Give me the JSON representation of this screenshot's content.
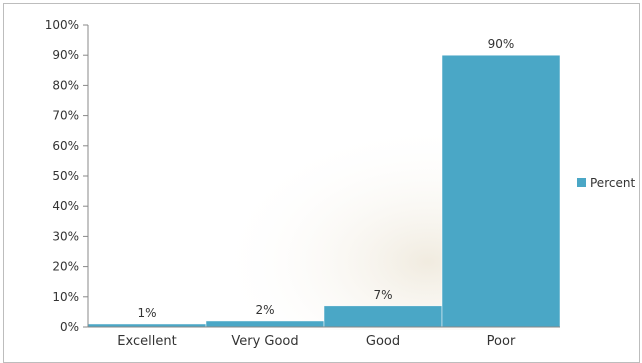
{
  "chart_data": {
    "type": "bar",
    "categories": [
      "Excellent",
      "Very Good",
      "Good",
      "Poor"
    ],
    "values": [
      1,
      2,
      7,
      90
    ],
    "value_labels": [
      "1%",
      "2%",
      "7%",
      "90%"
    ],
    "series": [
      {
        "name": "Percent",
        "values": [
          1,
          2,
          7,
          90
        ]
      }
    ],
    "ylim": [
      0,
      100
    ],
    "y_ticks": [
      "0%",
      "10%",
      "20%",
      "30%",
      "40%",
      "50%",
      "60%",
      "70%",
      "80%",
      "90%",
      "100%"
    ],
    "legend": "right",
    "grid": false,
    "bar_color": "#4aa7c6"
  }
}
